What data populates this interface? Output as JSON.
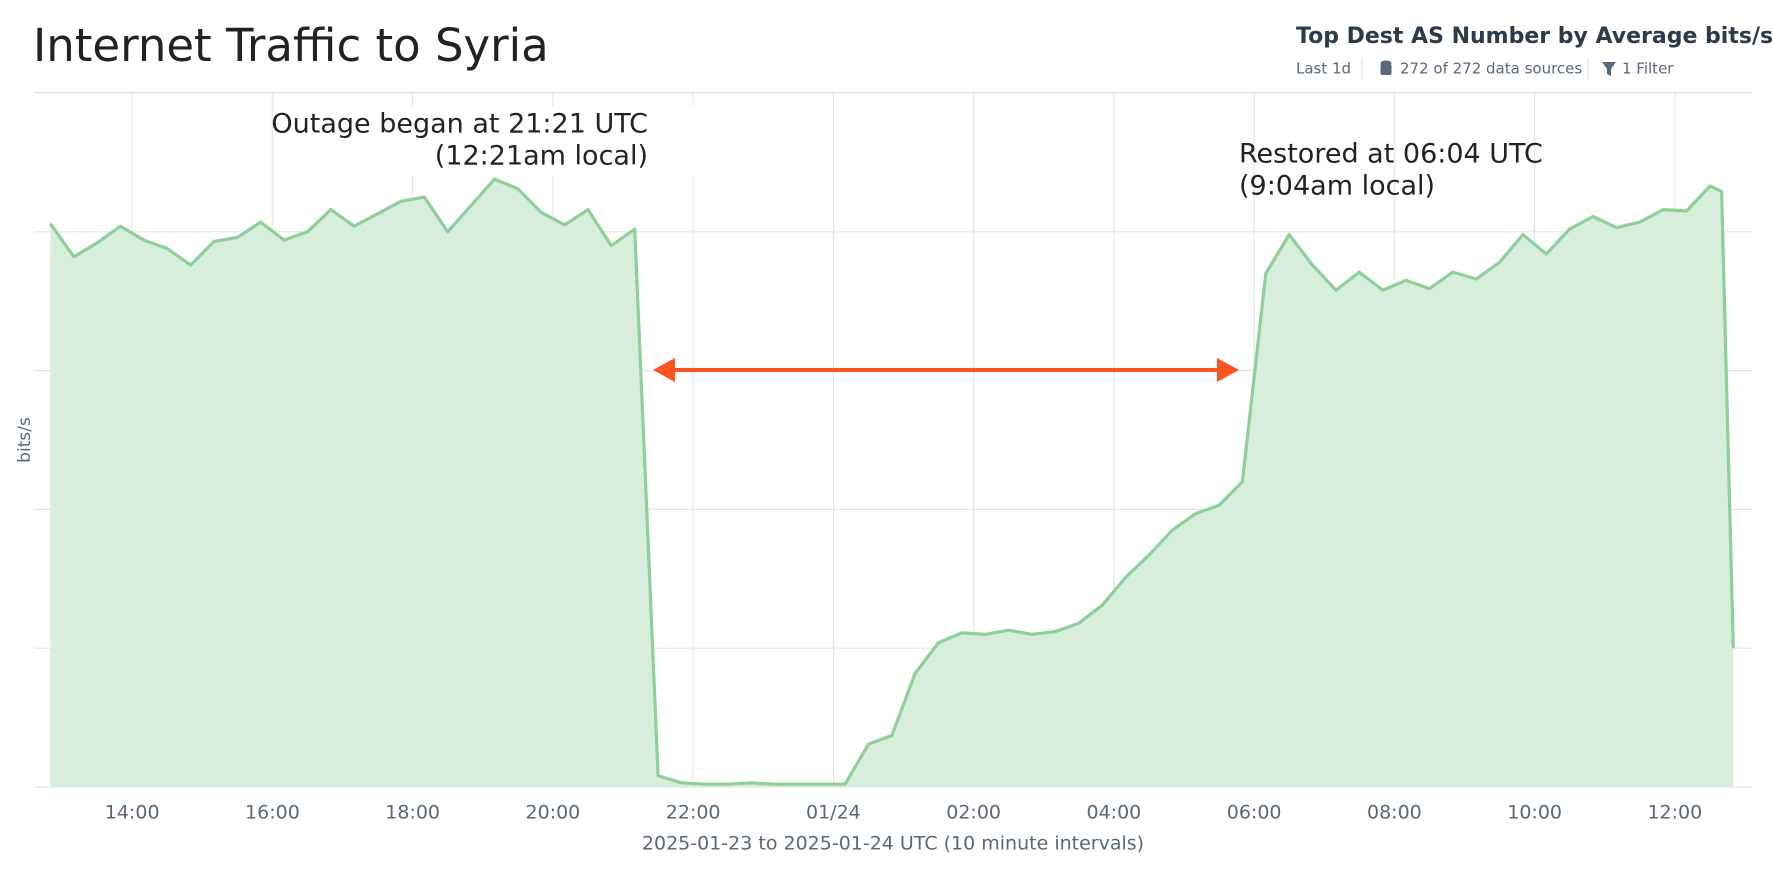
{
  "chart_data": {
    "type": "area",
    "title": "Internet Traffic to Syria",
    "panel_title": "Top Dest AS Number by Average bits/s",
    "meta": [
      "Last 1d",
      "272 of 272 data sources",
      "1 Filter"
    ],
    "y_label": "bits/s",
    "x_label": "2025-01-23 to 2025-01-24 UTC (10 minute intervals)",
    "annotations": [
      {
        "lines": [
          "Outage began at 21:21 UTC",
          "(12:21am local)"
        ]
      },
      {
        "lines": [
          "Restored at 06:04 UTC",
          "(9:04am local)"
        ]
      }
    ],
    "color": "#8fcf9a",
    "fill": "#d8eedd",
    "grid": true,
    "xlim": [
      12.6,
      37.1
    ],
    "ylim": [
      0,
      5
    ],
    "yticks": [
      0,
      1,
      2,
      3,
      4,
      5
    ],
    "xticks": [
      {
        "value": 14,
        "label": "14:00"
      },
      {
        "value": 16,
        "label": "16:00"
      },
      {
        "value": 18,
        "label": "18:00"
      },
      {
        "value": 20,
        "label": "20:00"
      },
      {
        "value": 22,
        "label": "22:00"
      },
      {
        "value": 24,
        "label": "01/24"
      },
      {
        "value": 26,
        "label": "02:00"
      },
      {
        "value": 28,
        "label": "04:00"
      },
      {
        "value": 30,
        "label": "06:00"
      },
      {
        "value": 32,
        "label": "08:00"
      },
      {
        "value": 34,
        "label": "10:00"
      },
      {
        "value": 36,
        "label": "12:00"
      }
    ],
    "x": [
      12.833,
      13.167,
      13.5,
      13.833,
      14.167,
      14.5,
      14.833,
      15.167,
      15.5,
      15.833,
      16.167,
      16.5,
      16.833,
      17.167,
      17.5,
      17.833,
      18.167,
      18.5,
      18.833,
      19.167,
      19.5,
      19.833,
      20.167,
      20.5,
      20.833,
      21.167,
      21.5,
      21.833,
      22.167,
      22.5,
      22.833,
      23.167,
      23.5,
      23.833,
      24.167,
      24.5,
      24.833,
      25.167,
      25.5,
      25.833,
      26.167,
      26.5,
      26.833,
      27.167,
      27.5,
      27.833,
      28.167,
      28.5,
      28.833,
      29.167,
      29.5,
      29.833,
      30.167,
      30.5,
      30.833,
      31.167,
      31.5,
      31.833,
      32.167,
      32.5,
      32.833,
      33.167,
      33.5,
      33.833,
      34.167,
      34.5,
      34.833,
      35.167,
      35.5,
      35.833,
      36.167,
      36.5,
      36.667,
      36.833
    ],
    "values": [
      4.06,
      3.82,
      3.92,
      4.04,
      3.94,
      3.88,
      3.76,
      3.93,
      3.96,
      4.07,
      3.94,
      4.0,
      4.16,
      4.04,
      4.13,
      4.22,
      4.25,
      4.0,
      4.19,
      4.38,
      4.31,
      4.14,
      4.05,
      4.16,
      3.9,
      4.02,
      0.08,
      0.03,
      0.02,
      0.02,
      0.03,
      0.02,
      0.02,
      0.02,
      0.02,
      0.31,
      0.37,
      0.82,
      1.04,
      1.11,
      1.1,
      1.13,
      1.1,
      1.12,
      1.18,
      1.31,
      1.51,
      1.67,
      1.85,
      1.97,
      2.03,
      2.2,
      3.7,
      3.98,
      3.76,
      3.58,
      3.71,
      3.58,
      3.65,
      3.59,
      3.71,
      3.66,
      3.78,
      3.98,
      3.84,
      4.02,
      4.11,
      4.03,
      4.07,
      4.16,
      4.15,
      4.33,
      4.29,
      1.0
    ]
  }
}
